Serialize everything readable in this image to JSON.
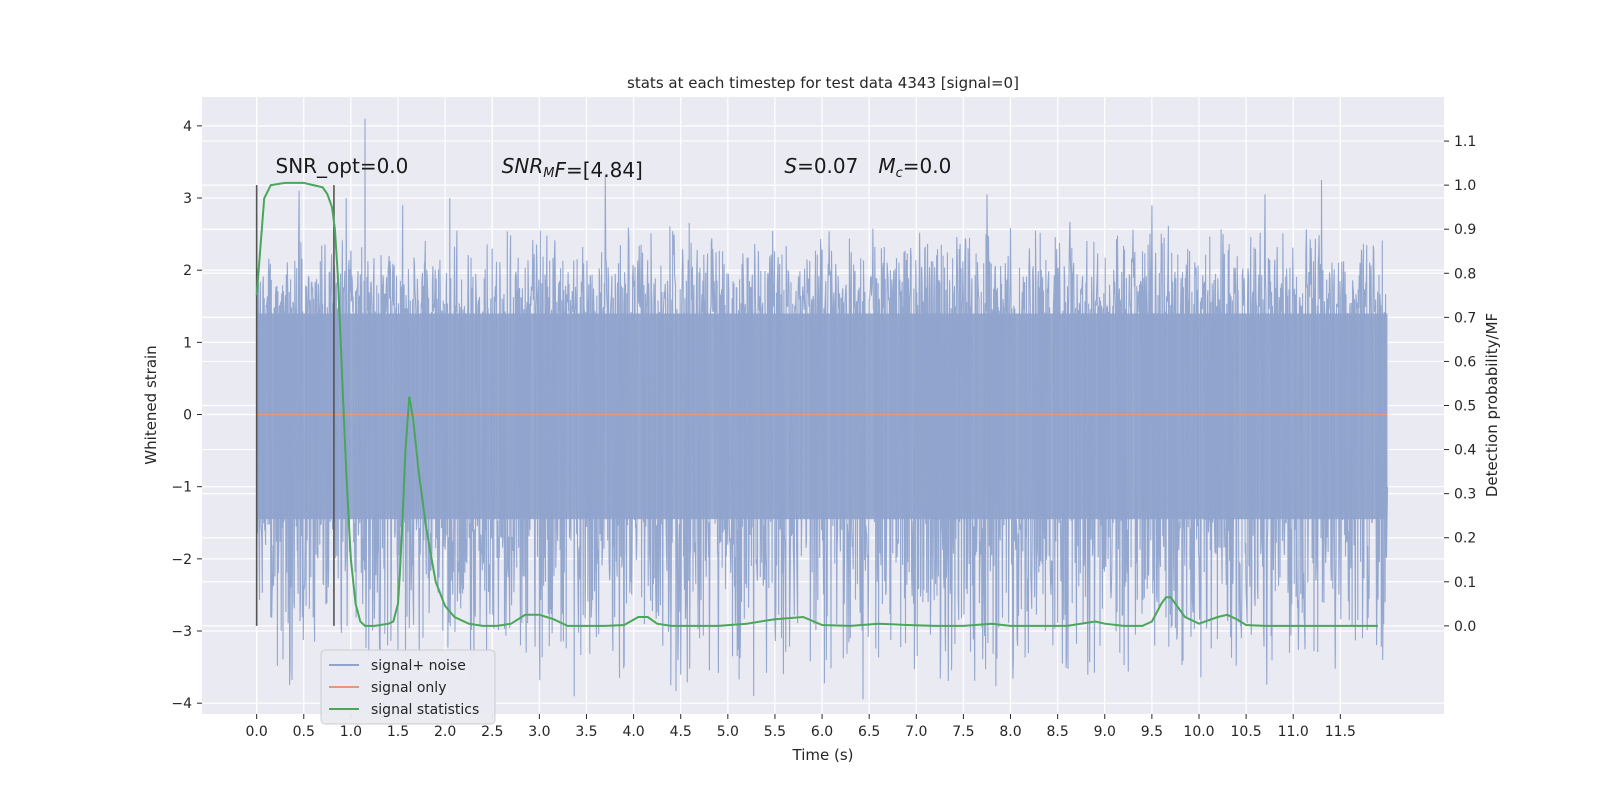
{
  "chart_data": {
    "type": "line",
    "title": "stats at each timestep for test data 4343 [signal=0]",
    "xlabel": "Time (s)",
    "ylabel": "Whitened strain",
    "ylabel_right": "Detection probability/MF",
    "xlim": [
      -0.58,
      12.6
    ],
    "ylim": [
      -4.15,
      4.4
    ],
    "ylim_right": [
      -0.2,
      1.2
    ],
    "x_ticks": [
      "0.0",
      "0.5",
      "1.0",
      "1.5",
      "2.0",
      "2.5",
      "3.0",
      "3.5",
      "4.0",
      "4.5",
      "5.0",
      "5.5",
      "6.0",
      "6.5",
      "7.0",
      "7.5",
      "8.0",
      "8.5",
      "9.0",
      "9.5",
      "10.0",
      "10.5",
      "11.0",
      "11.5"
    ],
    "y_ticks": [
      "4",
      "3",
      "2",
      "1",
      "0",
      "−1",
      "−2",
      "−3",
      "−4"
    ],
    "y_ticks_right": [
      "1.1",
      "1.0",
      "0.9",
      "0.8",
      "0.7",
      "0.6",
      "0.5",
      "0.4",
      "0.3",
      "0.2",
      "0.1",
      "0.0"
    ],
    "grid": true,
    "legend_position": "lower-left",
    "colors": {
      "noise": "#8fa3cc",
      "signal": "#e8957a",
      "stats": "#4aa65a",
      "background": "#eaeaf2",
      "marker": "#555555"
    },
    "series": [
      {
        "name": "signal+ noise",
        "note_values": "dense noise trace, x 0.0–12.0 s",
        "envelope_top": [
          [
            0.0,
            2.2
          ],
          [
            0.5,
            2.6
          ],
          [
            1.0,
            2.6
          ],
          [
            1.5,
            2.6
          ],
          [
            2.0,
            2.6
          ],
          [
            3.0,
            2.7
          ],
          [
            4.0,
            2.7
          ],
          [
            5.0,
            2.7
          ],
          [
            6.0,
            2.7
          ],
          [
            7.0,
            2.7
          ],
          [
            8.0,
            2.7
          ],
          [
            9.0,
            2.7
          ],
          [
            10.0,
            2.7
          ],
          [
            11.0,
            2.7
          ],
          [
            12.0,
            2.6
          ]
        ],
        "band_top": 1.4,
        "band_bottom": -1.45,
        "peaks": [
          [
            1.15,
            4.1
          ],
          [
            0.45,
            3.1
          ],
          [
            0.95,
            3.0
          ],
          [
            3.7,
            3.3
          ],
          [
            11.3,
            3.25
          ],
          [
            2.05,
            3.0
          ],
          [
            1.55,
            2.9
          ],
          [
            7.75,
            3.05
          ],
          [
            10.7,
            3.05
          ],
          [
            9.5,
            2.9
          ],
          [
            1.5,
            -3.3
          ],
          [
            0.35,
            -3.75
          ],
          [
            8.55,
            -3.45
          ],
          [
            11.95,
            -3.4
          ],
          [
            3.9,
            -3.45
          ],
          [
            2.8,
            -3.2
          ],
          [
            5.05,
            -3.35
          ],
          [
            6.3,
            -3.1
          ],
          [
            4.7,
            -3.1
          ],
          [
            10.45,
            -3.1
          ],
          [
            12.0,
            -1.0
          ]
        ]
      },
      {
        "name": "signal only",
        "x": [
          0.0,
          12.0
        ],
        "y": [
          0.0,
          0.0
        ]
      },
      {
        "name": "signal statistics",
        "axis": "right",
        "x": [
          0.0,
          0.08,
          0.15,
          0.3,
          0.5,
          0.6,
          0.7,
          0.75,
          0.8,
          0.83,
          0.86,
          0.9,
          0.95,
          1.0,
          1.05,
          1.1,
          1.15,
          1.25,
          1.4,
          1.45,
          1.5,
          1.52,
          1.55,
          1.58,
          1.62,
          1.66,
          1.72,
          1.8,
          1.9,
          2.0,
          2.1,
          2.25,
          2.4,
          2.55,
          2.7,
          2.85,
          3.0,
          3.15,
          3.3,
          3.5,
          3.7,
          3.9,
          4.05,
          4.15,
          4.25,
          4.4,
          4.6,
          4.9,
          5.2,
          5.5,
          5.8,
          6.0,
          6.3,
          6.6,
          6.9,
          7.2,
          7.5,
          7.8,
          8.0,
          8.3,
          8.6,
          8.9,
          9.0,
          9.2,
          9.4,
          9.5,
          9.55,
          9.6,
          9.65,
          9.7,
          9.75,
          9.85,
          10.0,
          10.2,
          10.3,
          10.4,
          10.5,
          10.7,
          11.0,
          11.5,
          11.9
        ],
        "y": [
          0.75,
          0.97,
          1.0,
          1.005,
          1.005,
          1.0,
          0.995,
          0.98,
          0.95,
          0.9,
          0.8,
          0.6,
          0.35,
          0.15,
          0.05,
          0.01,
          0.0,
          0.0,
          0.005,
          0.01,
          0.05,
          0.12,
          0.25,
          0.4,
          0.52,
          0.47,
          0.35,
          0.22,
          0.1,
          0.045,
          0.02,
          0.005,
          0.0,
          0.0,
          0.005,
          0.025,
          0.025,
          0.015,
          0.0,
          0.0,
          0.0,
          0.002,
          0.02,
          0.02,
          0.005,
          0.0,
          0.0,
          0.0,
          0.005,
          0.015,
          0.02,
          0.002,
          0.0,
          0.005,
          0.002,
          0.0,
          0.0,
          0.005,
          0.0,
          0.0,
          0.0,
          0.01,
          0.005,
          0.0,
          0.0,
          0.01,
          0.03,
          0.05,
          0.065,
          0.065,
          0.05,
          0.02,
          0.005,
          0.02,
          0.025,
          0.015,
          0.002,
          0.0,
          0.0,
          0.0,
          0.0
        ]
      }
    ],
    "marker_lines_x": [
      0.0,
      0.82
    ],
    "annotations": [
      {
        "id": "snr-opt",
        "text": "SNR_opt=0.0",
        "x": 0.2,
        "y": 3.35
      },
      {
        "id": "snr-mf",
        "base": "SNR",
        "sub": "M",
        "rest": "F=[4.84]",
        "x": 2.6,
        "y": 3.35
      },
      {
        "id": "s-mc",
        "base1": "S",
        "rest1": "=0.07",
        "base2": "M",
        "sub2": "c",
        "rest2": "=0.0",
        "x": 5.6,
        "y": 3.35
      }
    ]
  }
}
